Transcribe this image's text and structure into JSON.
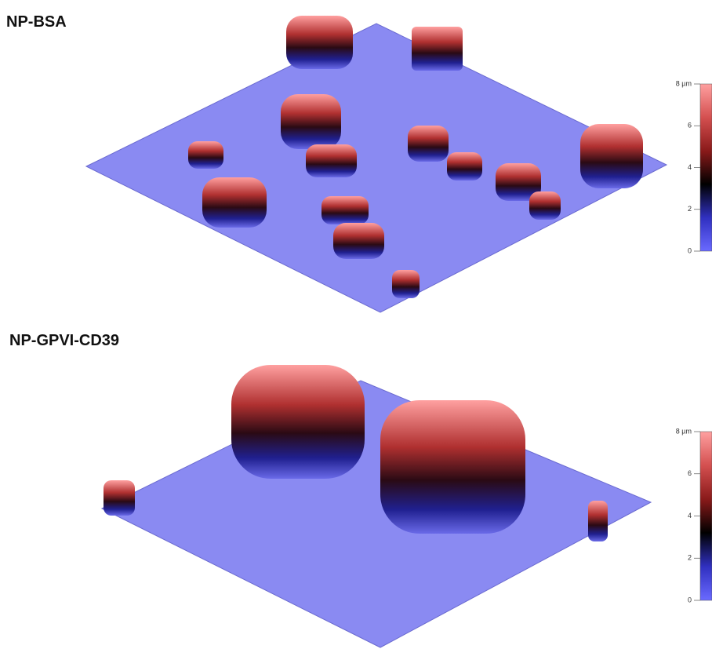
{
  "panels": [
    {
      "title": "NP-BSA",
      "colorbar": {
        "range": [
          0,
          8
        ],
        "ticks": [
          {
            "value": 8,
            "label": "8 µm"
          },
          6,
          4,
          2,
          0
        ],
        "colors": [
          "#6a6aff",
          "#3030c0",
          "#000000",
          "#8a1a1a",
          "#d45050",
          "#ffa0a0"
        ]
      }
    },
    {
      "title": "NP-GPVI-CD39",
      "colorbar": {
        "range": [
          0,
          8
        ],
        "ticks": [
          {
            "value": 8,
            "label": "8 µm"
          },
          6,
          4,
          2,
          0
        ],
        "colors": [
          "#6a6aff",
          "#3030c0",
          "#000000",
          "#8a1a1a",
          "#d45050",
          "#ffa0a0"
        ]
      }
    }
  ]
}
